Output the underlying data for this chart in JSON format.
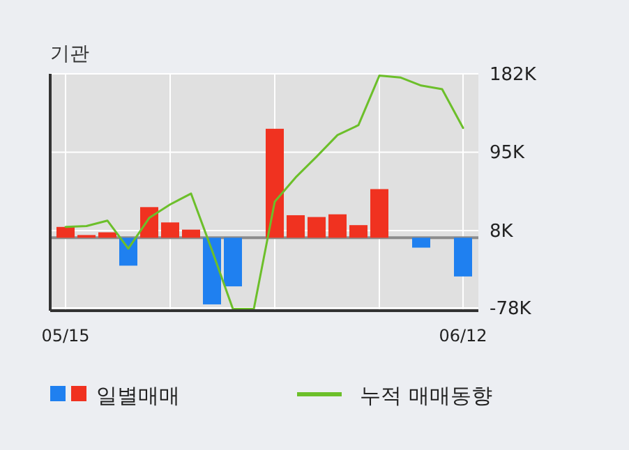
{
  "chart_data": {
    "type": "bar",
    "title": "기관",
    "categories": [
      "05/15",
      null,
      null,
      null,
      null,
      null,
      null,
      null,
      null,
      null,
      null,
      null,
      null,
      null,
      null,
      null,
      null,
      null,
      null,
      "06/12"
    ],
    "series": [
      {
        "name": "일별매매",
        "colors": [
          "#f03220",
          "#f03220",
          "#f03220",
          "#1f80f0",
          "#f03220",
          "#f03220",
          "#f03220",
          "#1f80f0",
          "#1f80f0",
          "#f03220",
          "#f03220",
          "#f03220",
          "#f03220",
          "#f03220",
          "#f03220",
          "#f03220",
          "#f03220",
          "#1f80f0",
          "#f03220",
          "#1f80f0"
        ],
        "values": [
          12,
          3,
          6,
          -31,
          34,
          17,
          9,
          -74,
          -54,
          0,
          121,
          25,
          23,
          26,
          14,
          54,
          0,
          -11,
          0,
          -43
        ]
      },
      {
        "name": "누적 매매동향",
        "type": "line",
        "color": "#6cbf2a",
        "values": [
          12,
          13,
          19,
          -12,
          22,
          37,
          49,
          -14,
          -79,
          -79,
          40,
          67,
          90,
          114,
          125,
          180,
          178,
          169,
          165,
          122
        ]
      }
    ],
    "ylim": [
      -81,
      182
    ],
    "yticks": [
      {
        "value": 182,
        "label": "182K"
      },
      {
        "value": 95,
        "label": "95K"
      },
      {
        "value": 8,
        "label": "8K"
      },
      {
        "value": -78,
        "label": "-78K"
      }
    ],
    "ref_lines": [
      {
        "axis": "y",
        "value": 0,
        "color": "#8c8c8c"
      }
    ],
    "grid": true,
    "legend": "bottom"
  }
}
